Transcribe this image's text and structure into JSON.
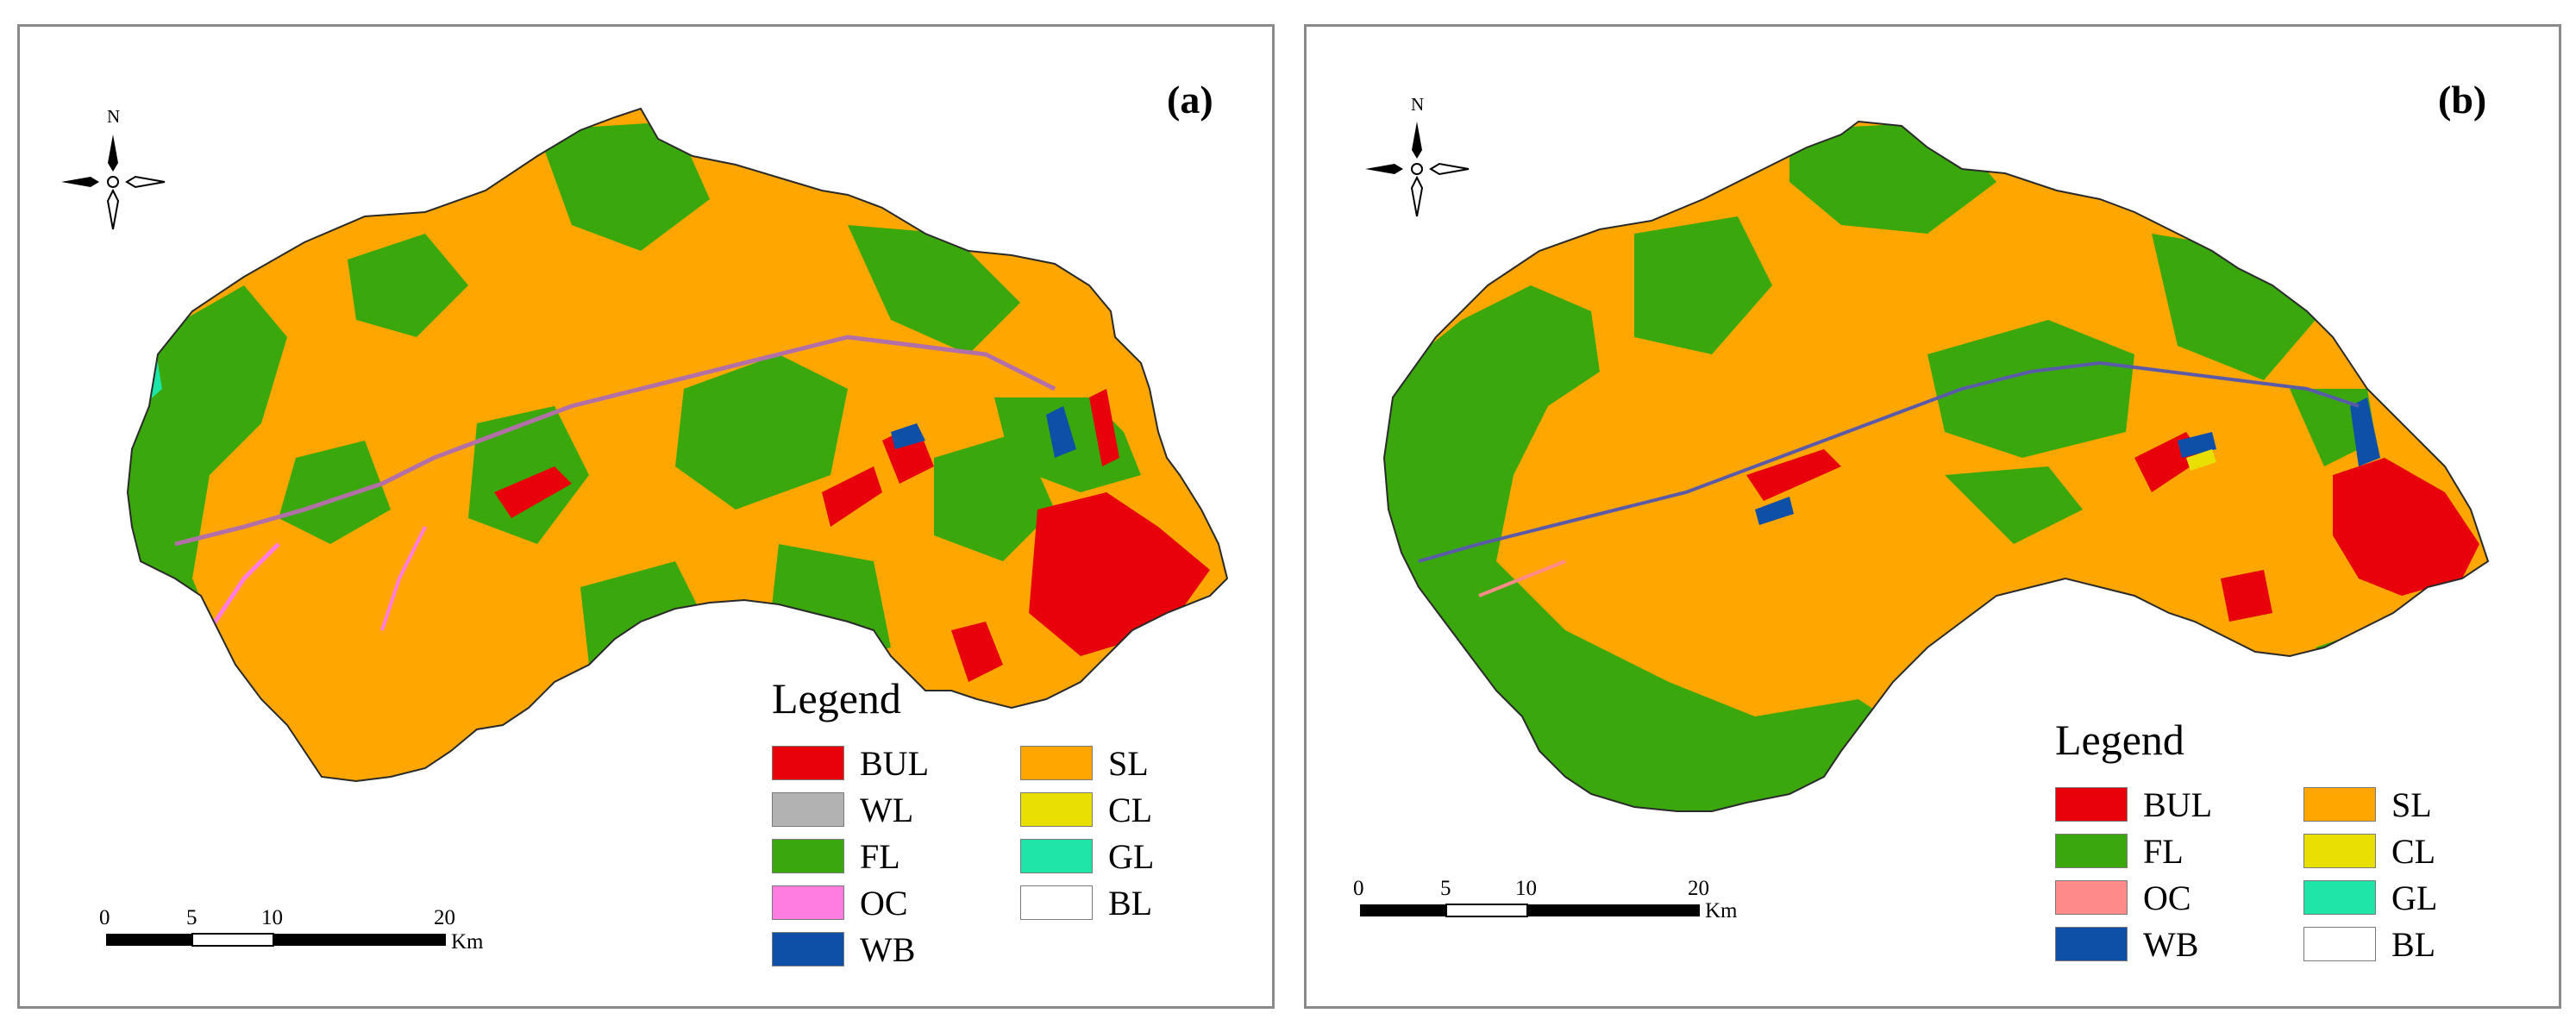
{
  "panels": [
    {
      "label": "(a)",
      "north": "N",
      "legend_title": "Legend",
      "legend_items": [
        {
          "code": "BUL",
          "color": "#e8000b"
        },
        {
          "code": "WL",
          "color": "#b2b2b2"
        },
        {
          "code": "FL",
          "color": "#3aa80c"
        },
        {
          "code": "OC",
          "color": "#ff7ce0"
        },
        {
          "code": "WB",
          "color": "#0e4fa8"
        },
        {
          "code": "SL",
          "color": "#ffa600"
        },
        {
          "code": "CL",
          "color": "#e8e000"
        },
        {
          "code": "GL",
          "color": "#1ee6a8"
        },
        {
          "code": "BL",
          "color": "#ffffff"
        }
      ],
      "scale": {
        "ticks": [
          "0",
          "5",
          "10",
          "20"
        ],
        "unit": "Km"
      }
    },
    {
      "label": "(b)",
      "north": "N",
      "legend_title": "Legend",
      "legend_items": [
        {
          "code": "BUL",
          "color": "#e8000b"
        },
        {
          "code": "FL",
          "color": "#3aa80c"
        },
        {
          "code": "OC",
          "color": "#ff8a8a"
        },
        {
          "code": "WB",
          "color": "#0e4fa8"
        },
        {
          "code": "SL",
          "color": "#ffa600"
        },
        {
          "code": "CL",
          "color": "#e8e000"
        },
        {
          "code": "GL",
          "color": "#1ee6a8"
        },
        {
          "code": "BL",
          "color": "#ffffff"
        }
      ],
      "scale": {
        "ticks": [
          "0",
          "5",
          "10",
          "20"
        ],
        "unit": "Km"
      }
    }
  ]
}
